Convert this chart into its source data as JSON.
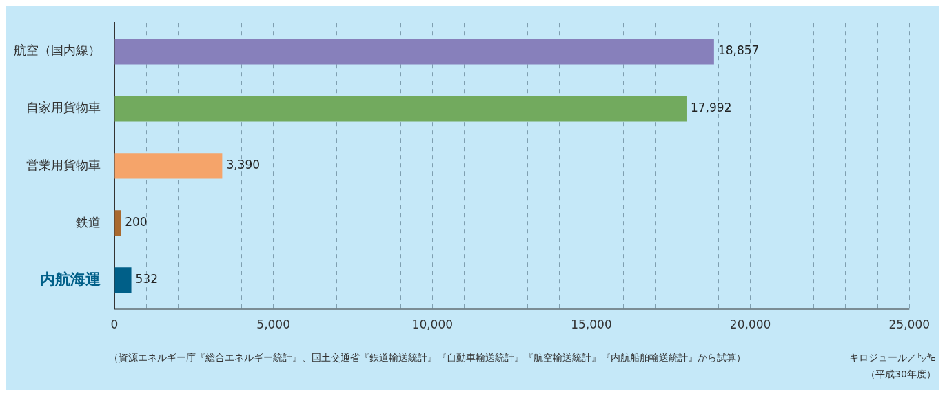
{
  "chart_data": {
    "type": "bar",
    "orientation": "horizontal",
    "xlabel": "キロジュール／㌧㌔",
    "categories": [
      "航空（国内線）",
      "自家用貨物車",
      "営業用貨物車",
      "鉄道",
      "内航海運"
    ],
    "values": [
      18857,
      17992,
      3390,
      200,
      532
    ],
    "colors": [
      "#8780bb",
      "#72aa5e",
      "#f5a46a",
      "#a9692f",
      "#005f88"
    ],
    "xlim": [
      0,
      25000
    ],
    "xticks": [
      0,
      {
        "value": 1000,
        "label": null
      },
      {
        "value": 2000,
        "label": null
      },
      {
        "value": 3000,
        "label": null
      },
      {
        "value": 4000,
        "label": null
      },
      {
        "value": 5000,
        "label": "5,000"
      },
      {
        "value": 6000,
        "label": null
      },
      {
        "value": 7000,
        "label": null
      },
      {
        "value": 8000,
        "label": null
      },
      {
        "value": 9000,
        "label": null
      },
      {
        "value": 10000,
        "label": "10,000"
      },
      {
        "value": 11000,
        "label": null
      },
      {
        "value": 12000,
        "label": null
      },
      {
        "value": 13000,
        "label": null
      },
      {
        "value": 14000,
        "label": null
      },
      {
        "value": 15000,
        "label": "15,000"
      },
      {
        "value": 16000,
        "label": null
      },
      {
        "value": 17000,
        "label": null
      },
      {
        "value": 18000,
        "label": null
      },
      {
        "value": 19000,
        "label": null
      },
      {
        "value": 20000,
        "label": "20,000"
      },
      {
        "value": 21000,
        "label": null
      },
      {
        "value": 22000,
        "label": null
      },
      {
        "value": 23000,
        "label": null
      },
      {
        "value": 24000,
        "label": null
      },
      {
        "value": 25000,
        "label": "25,000"
      }
    ],
    "value_labels": [
      "18,857",
      "17,992",
      "3,390",
      "200",
      "532"
    ],
    "grid": "x",
    "legend": false,
    "annotations": [
      "（資源エネルギー庁『総合エネルギー統計』、国土交通省『鉄道輸送統計』『自動車輸送統計』『航空輸送統計』『内航船舶輸送統計』から試算）",
      "（平成30年度）"
    ]
  }
}
